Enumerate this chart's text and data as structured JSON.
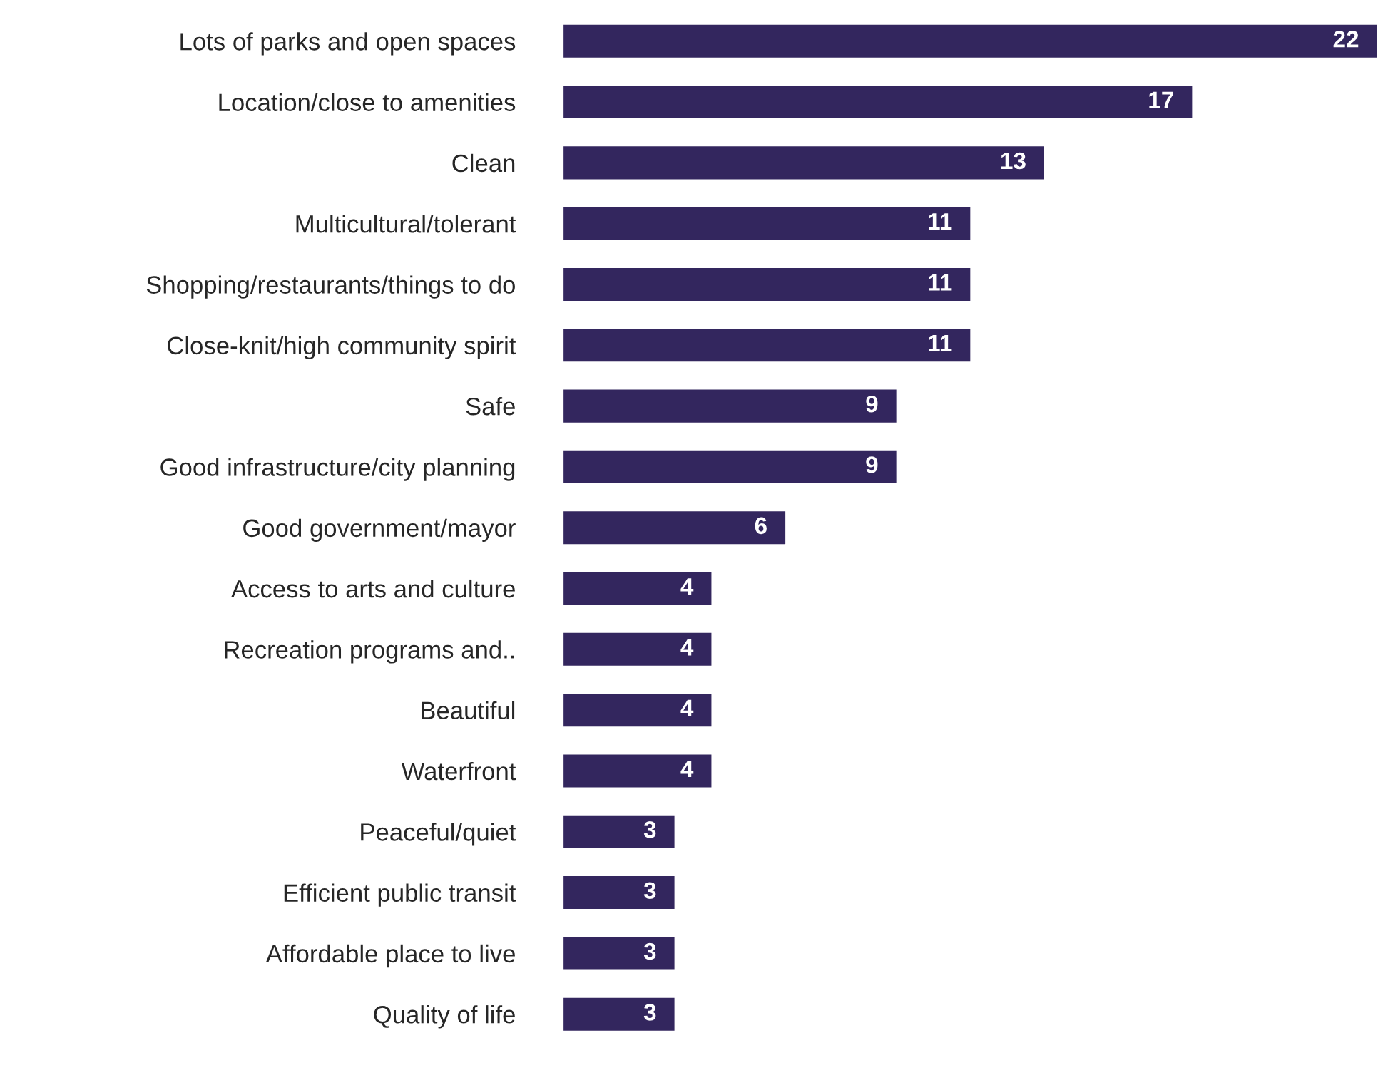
{
  "chart_data": {
    "type": "bar",
    "orientation": "horizontal",
    "data_labels": true,
    "grid": false,
    "legend": false,
    "tick_labels": "y",
    "color": "#33265e",
    "categories": [
      "Lots of parks and open spaces",
      "Location/close to amenities",
      "Clean",
      "Multicultural/tolerant",
      "Shopping/restaurants/things to do",
      "Close-knit/high community spirit",
      "Safe",
      "Good infrastructure/city planning",
      "Good government/mayor",
      "Access to arts and culture",
      "Recreation programs and..",
      "Beautiful",
      "Waterfront",
      "Peaceful/quiet",
      "Efficient public transit",
      "Affordable place to live",
      "Quality of life"
    ],
    "values": [
      22,
      17,
      13,
      11,
      11,
      11,
      9,
      9,
      6,
      4,
      4,
      4,
      4,
      3,
      3,
      3,
      3
    ]
  }
}
